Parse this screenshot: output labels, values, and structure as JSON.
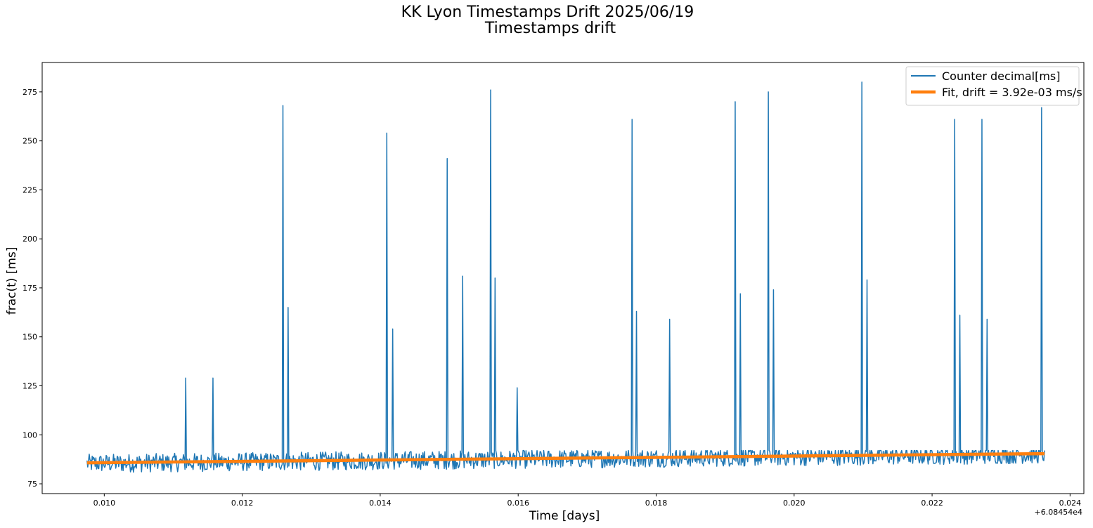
{
  "chart_data": {
    "type": "line",
    "title": "KK Lyon Timestamps Drift 2025/06/19",
    "subtitle": "Timestamps drift",
    "xlabel": "Time [days]",
    "ylabel": "frac(t) [ms]",
    "x_offset_label": "+6.08454e4",
    "xlim": [
      0.0091,
      0.0242
    ],
    "ylim": [
      70,
      290
    ],
    "x_ticks": [
      0.01,
      0.012,
      0.014,
      0.016,
      0.018,
      0.02,
      0.022,
      0.024
    ],
    "x_tick_labels": [
      "0.010",
      "0.012",
      "0.014",
      "0.016",
      "0.018",
      "0.020",
      "0.022",
      "0.024"
    ],
    "y_ticks": [
      75,
      100,
      125,
      150,
      175,
      200,
      225,
      250,
      275
    ],
    "y_tick_labels": [
      "75",
      "100",
      "125",
      "150",
      "175",
      "200",
      "225",
      "250",
      "275"
    ],
    "grid": false,
    "legend_position": "top-right",
    "series": [
      {
        "name": "Counter decimal[ms]",
        "color": "#1f77b4",
        "x_start": 0.00975,
        "x_end": 0.02363,
        "baseline_range": [
          80,
          91
        ],
        "spikes": [
          {
            "x": 0.01118,
            "y": 129
          },
          {
            "x": 0.01158,
            "y": 129
          },
          {
            "x": 0.01259,
            "y": 268
          },
          {
            "x": 0.01266,
            "y": 165
          },
          {
            "x": 0.0141,
            "y": 254
          },
          {
            "x": 0.01418,
            "y": 154
          },
          {
            "x": 0.01497,
            "y": 241
          },
          {
            "x": 0.0152,
            "y": 181
          },
          {
            "x": 0.0156,
            "y": 276
          },
          {
            "x": 0.01567,
            "y": 180
          },
          {
            "x": 0.01599,
            "y": 124
          },
          {
            "x": 0.01765,
            "y": 261
          },
          {
            "x": 0.01772,
            "y": 163
          },
          {
            "x": 0.0182,
            "y": 159
          },
          {
            "x": 0.01915,
            "y": 270
          },
          {
            "x": 0.01922,
            "y": 172
          },
          {
            "x": 0.01963,
            "y": 275
          },
          {
            "x": 0.0197,
            "y": 174
          },
          {
            "x": 0.02098,
            "y": 280
          },
          {
            "x": 0.02106,
            "y": 179
          },
          {
            "x": 0.02233,
            "y": 261
          },
          {
            "x": 0.0224,
            "y": 161
          },
          {
            "x": 0.02272,
            "y": 261
          },
          {
            "x": 0.0228,
            "y": 159
          },
          {
            "x": 0.02359,
            "y": 267
          }
        ]
      },
      {
        "name": "Fit, drift = 3.92e-03 ms/s",
        "color": "#ff7f0e",
        "x": [
          0.00975,
          0.02363
        ],
        "y": [
          85.7,
          90.4
        ]
      }
    ]
  }
}
